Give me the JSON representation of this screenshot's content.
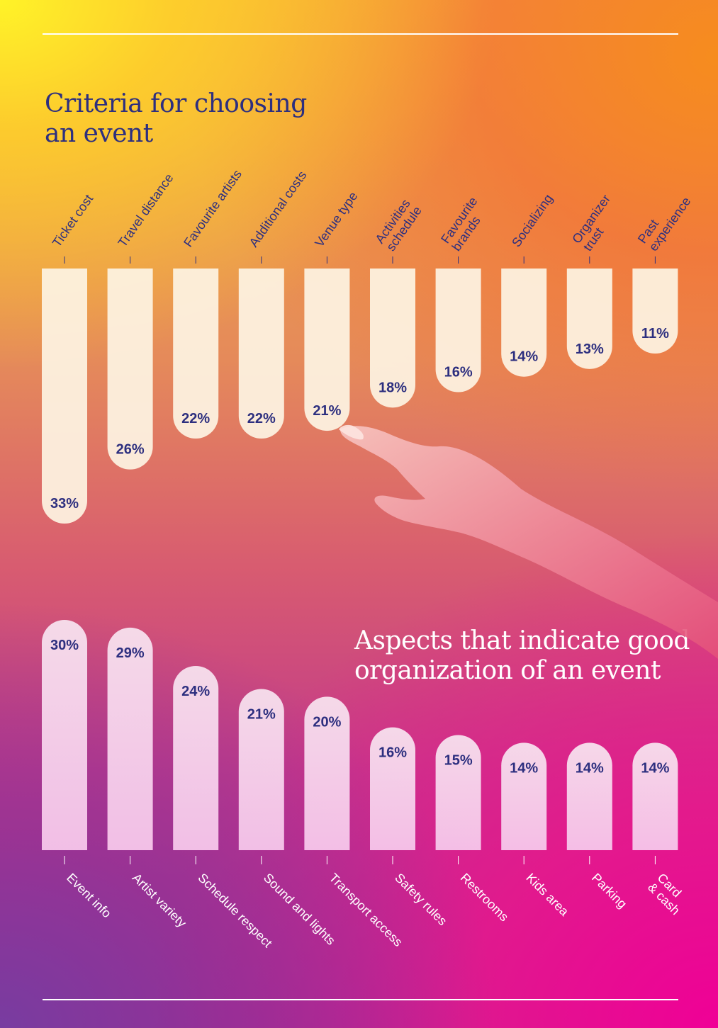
{
  "chart_data": [
    {
      "type": "bar",
      "orientation": "vertical-hanging",
      "title_lines": [
        "Criteria for choosing",
        "an event"
      ],
      "categories": [
        [
          "Ticket cost"
        ],
        [
          "Travel distance"
        ],
        [
          "Favourite artists"
        ],
        [
          "Additional costs"
        ],
        [
          "Venue type"
        ],
        [
          "Activities",
          "schedule"
        ],
        [
          "Favourite",
          "brands"
        ],
        [
          "Socializing"
        ],
        [
          "Organizer",
          "trust"
        ],
        [
          "Past",
          "experience"
        ]
      ],
      "values": [
        33,
        26,
        22,
        22,
        21,
        18,
        16,
        14,
        13,
        11
      ],
      "value_labels": [
        "33%",
        "26%",
        "22%",
        "22%",
        "21%",
        "18%",
        "16%",
        "14%",
        "13%",
        "11%"
      ],
      "ylim": [
        0,
        33
      ],
      "colors": {
        "bar": "#fdf3e2",
        "text": "#2d2f7f"
      }
    },
    {
      "type": "bar",
      "orientation": "vertical",
      "title_lines": [
        "Aspects that indicate good",
        "organization of an event"
      ],
      "categories": [
        [
          "Event info"
        ],
        [
          "Artist variety"
        ],
        [
          "Schedule respect"
        ],
        [
          "Sound and lights"
        ],
        [
          "Transport access"
        ],
        [
          "Safety rules"
        ],
        [
          "Restrooms"
        ],
        [
          "Kids area"
        ],
        [
          "Parking"
        ],
        [
          "Card",
          "& cash"
        ]
      ],
      "values": [
        30,
        29,
        24,
        21,
        20,
        16,
        15,
        14,
        14,
        14
      ],
      "value_labels": [
        "30%",
        "29%",
        "24%",
        "21%",
        "20%",
        "16%",
        "15%",
        "14%",
        "14%",
        "14%"
      ],
      "ylim": [
        0,
        30
      ],
      "colors": {
        "bar_top": "#f7e1ee",
        "bar_bottom": "#f7c8ea",
        "text": "#2d2f7f",
        "label": "#ffffff"
      }
    }
  ],
  "colors": {
    "rule": "#ffffff",
    "title_top": "#2d2f7f",
    "title_bottom": "#ffffff"
  }
}
